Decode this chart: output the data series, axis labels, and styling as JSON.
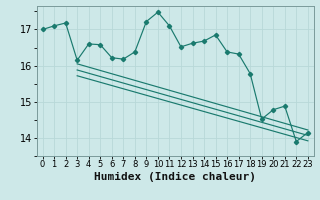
{
  "xlabel": "Humidex (Indice chaleur)",
  "bg_color": "#cde8e8",
  "line_color": "#1a7a6e",
  "xlim": [
    -0.5,
    23.5
  ],
  "ylim": [
    13.5,
    17.65
  ],
  "yticks": [
    14,
    15,
    16,
    17
  ],
  "xticks": [
    0,
    1,
    2,
    3,
    4,
    5,
    6,
    7,
    8,
    9,
    10,
    11,
    12,
    13,
    14,
    15,
    16,
    17,
    18,
    19,
    20,
    21,
    22,
    23
  ],
  "main_x": [
    0,
    1,
    2,
    3,
    4,
    5,
    6,
    7,
    8,
    9,
    10,
    11,
    12,
    13,
    14,
    15,
    16,
    17,
    18,
    19,
    20,
    21,
    22,
    23
  ],
  "main_y": [
    17.0,
    17.1,
    17.18,
    16.15,
    16.6,
    16.58,
    16.22,
    16.18,
    16.38,
    17.22,
    17.48,
    17.1,
    16.52,
    16.62,
    16.68,
    16.85,
    16.38,
    16.32,
    15.78,
    14.52,
    14.78,
    14.88,
    13.9,
    14.15
  ],
  "reg_lines": [
    [
      3,
      16.05,
      23,
      14.22
    ],
    [
      3,
      15.88,
      23,
      14.07
    ],
    [
      3,
      15.72,
      23,
      13.92
    ]
  ],
  "grid_color": "#b8d8d8",
  "grid_minor_color": "#d0e8e8",
  "xlabel_fontsize": 8,
  "ytick_fontsize": 7,
  "xtick_fontsize": 6
}
